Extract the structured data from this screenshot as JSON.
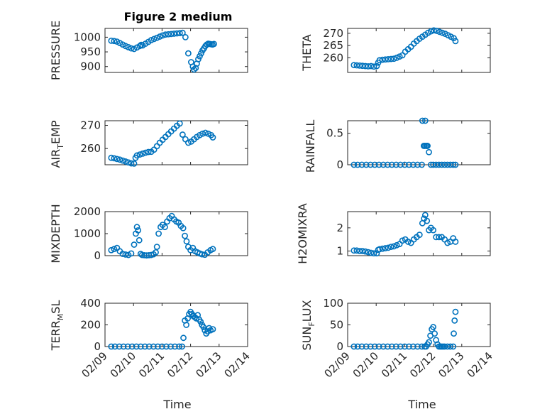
{
  "figure_title": "Figure 2 medium",
  "colors": {
    "marker": "#0072BD",
    "axis": "#262626",
    "grid": "#b0b0b0"
  },
  "chart_data": [
    {
      "type": "scatter",
      "ylabel": "PRESSURE",
      "ylim": [
        880,
        1030
      ],
      "yticks": [
        900,
        950,
        1000
      ],
      "xlim": [
        0,
        5
      ],
      "xtick_labels": [],
      "grid": true,
      "title": "Figure 2 medium",
      "x": [
        0.22,
        0.32,
        0.42,
        0.52,
        0.62,
        0.72,
        0.82,
        0.92,
        1.02,
        1.12,
        1.22,
        1.27,
        1.32,
        1.42,
        1.52,
        1.62,
        1.72,
        1.82,
        1.92,
        2.02,
        2.12,
        2.22,
        2.32,
        2.42,
        2.52,
        2.62,
        2.72,
        2.82,
        2.92,
        3.02,
        3.08,
        3.12,
        3.18,
        3.22,
        3.27,
        3.32,
        3.37,
        3.42,
        3.47,
        3.52,
        3.57,
        3.62,
        3.67,
        3.72,
        3.77,
        3.82
      ],
      "y": [
        988,
        987,
        985,
        980,
        975,
        970,
        966,
        962,
        960,
        965,
        970,
        974,
        972,
        978,
        984,
        990,
        994,
        998,
        1002,
        1006,
        1009,
        1010,
        1011,
        1012,
        1013,
        1014,
        1015,
        1000,
        945,
        915,
        900,
        890,
        895,
        910,
        925,
        935,
        945,
        955,
        962,
        970,
        975,
        978,
        977,
        976,
        975,
        977
      ]
    },
    {
      "type": "scatter",
      "ylabel": "THETA",
      "ylim": [
        254,
        272
      ],
      "yticks": [
        260,
        265,
        270
      ],
      "xlim": [
        0,
        5
      ],
      "xtick_labels": [],
      "grid": true,
      "x": [
        0.22,
        0.32,
        0.42,
        0.52,
        0.62,
        0.72,
        0.82,
        0.92,
        1.02,
        1.07,
        1.12,
        1.22,
        1.32,
        1.42,
        1.52,
        1.62,
        1.72,
        1.82,
        1.92,
        2.02,
        2.12,
        2.22,
        2.32,
        2.42,
        2.52,
        2.62,
        2.72,
        2.82,
        2.92,
        3.02,
        3.12,
        3.22,
        3.32,
        3.42,
        3.52,
        3.62,
        3.72,
        3.78
      ],
      "y": [
        257.0,
        256.9,
        256.8,
        256.7,
        256.6,
        256.5,
        256.6,
        256.4,
        256.6,
        258.0,
        259.0,
        259.2,
        259.3,
        259.4,
        259.5,
        259.6,
        260.0,
        260.5,
        261.0,
        262.5,
        263.5,
        264.5,
        265.8,
        266.8,
        267.8,
        268.6,
        269.4,
        270.2,
        270.8,
        271.2,
        271.0,
        270.6,
        270.2,
        269.8,
        269.2,
        268.6,
        268.0,
        266.8
      ]
    },
    {
      "type": "scatter",
      "ylabel": "AIR_TEMP",
      "ylim": [
        253,
        272
      ],
      "yticks": [
        260,
        270
      ],
      "xlim": [
        0,
        5
      ],
      "xtick_labels": [],
      "grid": true,
      "x": [
        0.22,
        0.32,
        0.42,
        0.52,
        0.62,
        0.72,
        0.82,
        0.92,
        1.02,
        1.07,
        1.12,
        1.22,
        1.32,
        1.42,
        1.52,
        1.62,
        1.72,
        1.82,
        1.92,
        2.02,
        2.12,
        2.22,
        2.32,
        2.42,
        2.52,
        2.62,
        2.72,
        2.82,
        2.92,
        3.02,
        3.12,
        3.22,
        3.32,
        3.42,
        3.52,
        3.62,
        3.72,
        3.78
      ],
      "y": [
        256.0,
        255.8,
        255.5,
        255.2,
        254.8,
        254.4,
        254.0,
        253.6,
        253.5,
        256.0,
        257.0,
        257.4,
        257.8,
        258.2,
        258.5,
        258.6,
        259.5,
        261.0,
        262.5,
        263.8,
        265.0,
        266.2,
        267.4,
        268.6,
        269.8,
        270.8,
        266.0,
        264.0,
        262.5,
        263.0,
        264.0,
        265.0,
        265.8,
        266.4,
        266.8,
        266.4,
        265.8,
        264.8
      ]
    },
    {
      "type": "scatter",
      "ylabel": "RAINFALL",
      "ylim": [
        0,
        0.7
      ],
      "yticks": [
        0,
        0.5
      ],
      "xlim": [
        0,
        5
      ],
      "xtick_labels": [],
      "grid": true,
      "x": [
        0.22,
        0.35,
        0.5,
        0.65,
        0.8,
        0.95,
        1.1,
        1.25,
        1.4,
        1.55,
        1.7,
        1.85,
        2.0,
        2.15,
        2.3,
        2.45,
        2.6,
        2.62,
        2.67,
        2.7,
        2.72,
        2.75,
        2.78,
        2.8,
        2.85,
        2.92,
        3.0,
        3.1,
        3.2,
        3.3,
        3.4,
        3.5,
        3.6,
        3.7,
        3.78
      ],
      "y": [
        0,
        0,
        0,
        0,
        0,
        0,
        0,
        0,
        0,
        0,
        0,
        0,
        0,
        0,
        0,
        0,
        0,
        0.7,
        0.3,
        0.3,
        0.7,
        0.3,
        0.3,
        0.3,
        0.2,
        0,
        0,
        0,
        0,
        0,
        0,
        0,
        0,
        0,
        0
      ]
    },
    {
      "type": "scatter",
      "ylabel": "MIXDEPTH",
      "ylim": [
        0,
        2000
      ],
      "yticks": [
        0,
        1000,
        2000
      ],
      "xlim": [
        0,
        5
      ],
      "xtick_labels": [],
      "grid": true,
      "x": [
        0.22,
        0.32,
        0.42,
        0.52,
        0.62,
        0.72,
        0.82,
        0.92,
        1.02,
        1.08,
        1.12,
        1.16,
        1.2,
        1.25,
        1.3,
        1.38,
        1.46,
        1.54,
        1.62,
        1.7,
        1.78,
        1.82,
        1.88,
        1.95,
        2.02,
        2.1,
        2.18,
        2.26,
        2.34,
        2.42,
        2.5,
        2.58,
        2.66,
        2.74,
        2.8,
        2.86,
        2.92,
        3.0,
        3.08,
        3.16,
        3.24,
        3.32,
        3.4,
        3.5,
        3.6,
        3.7,
        3.78
      ],
      "y": [
        250,
        300,
        350,
        200,
        80,
        50,
        30,
        100,
        500,
        1000,
        1300,
        1150,
        700,
        80,
        30,
        20,
        10,
        20,
        30,
        60,
        150,
        400,
        1000,
        1300,
        1400,
        1300,
        1550,
        1700,
        1800,
        1650,
        1550,
        1500,
        1350,
        1250,
        900,
        650,
        400,
        250,
        350,
        200,
        150,
        100,
        60,
        40,
        150,
        250,
        300
      ]
    },
    {
      "type": "scatter",
      "ylabel": "H2OMIXRA",
      "ylim": [
        0.8,
        2.7
      ],
      "yticks": [
        1,
        2
      ],
      "xlim": [
        0,
        5
      ],
      "xtick_labels": [],
      "grid": true,
      "x": [
        0.22,
        0.32,
        0.42,
        0.52,
        0.62,
        0.72,
        0.82,
        0.92,
        1.02,
        1.07,
        1.12,
        1.22,
        1.32,
        1.42,
        1.52,
        1.62,
        1.72,
        1.82,
        1.92,
        2.02,
        2.12,
        2.22,
        2.32,
        2.42,
        2.52,
        2.62,
        2.68,
        2.72,
        2.78,
        2.85,
        2.92,
        3.0,
        3.1,
        3.2,
        3.3,
        3.4,
        3.5,
        3.6,
        3.7,
        3.78
      ],
      "y": [
        1.02,
        1.02,
        1.0,
        1.0,
        0.98,
        0.95,
        0.92,
        0.9,
        0.9,
        1.05,
        1.08,
        1.1,
        1.12,
        1.14,
        1.18,
        1.2,
        1.25,
        1.3,
        1.45,
        1.5,
        1.4,
        1.35,
        1.5,
        1.6,
        1.7,
        2.2,
        2.4,
        2.55,
        2.3,
        1.9,
        2.0,
        1.9,
        1.6,
        1.6,
        1.6,
        1.5,
        1.35,
        1.4,
        1.55,
        1.4
      ]
    },
    {
      "type": "scatter",
      "ylabel": "TERR_MSL",
      "ylim": [
        0,
        400
      ],
      "yticks": [
        0,
        200,
        400
      ],
      "xlim": [
        0,
        5
      ],
      "xtick_labels": [
        "02/09",
        "02/10",
        "02/11",
        "02/12",
        "02/13",
        "02/14"
      ],
      "xlabel": "Time",
      "grid": true,
      "x": [
        0.22,
        0.35,
        0.5,
        0.65,
        0.8,
        0.95,
        1.1,
        1.25,
        1.4,
        1.55,
        1.7,
        1.85,
        2.0,
        2.15,
        2.3,
        2.45,
        2.6,
        2.7,
        2.75,
        2.8,
        2.85,
        2.9,
        2.95,
        3.0,
        3.05,
        3.1,
        3.15,
        3.2,
        3.25,
        3.3,
        3.35,
        3.4,
        3.45,
        3.5,
        3.55,
        3.6,
        3.65,
        3.7,
        3.78
      ],
      "y": [
        0,
        0,
        0,
        0,
        0,
        0,
        0,
        0,
        0,
        0,
        0,
        0,
        0,
        0,
        0,
        0,
        0,
        0,
        80,
        240,
        200,
        260,
        300,
        320,
        300,
        280,
        270,
        260,
        290,
        250,
        230,
        200,
        180,
        150,
        120,
        140,
        170,
        150,
        160
      ]
    },
    {
      "type": "scatter",
      "ylabel": "SUN_FLUX",
      "ylim": [
        0,
        100
      ],
      "yticks": [
        0,
        50,
        100
      ],
      "xlim": [
        0,
        5
      ],
      "xtick_labels": [
        "02/09",
        "02/10",
        "02/11",
        "02/12",
        "02/13",
        "02/14"
      ],
      "xlabel": "Time",
      "grid": true,
      "x": [
        0.22,
        0.35,
        0.5,
        0.65,
        0.8,
        0.95,
        1.1,
        1.25,
        1.4,
        1.55,
        1.7,
        1.85,
        2.0,
        2.15,
        2.3,
        2.45,
        2.6,
        2.7,
        2.75,
        2.8,
        2.85,
        2.9,
        2.95,
        3.0,
        3.05,
        3.1,
        3.15,
        3.2,
        3.25,
        3.3,
        3.35,
        3.4,
        3.5,
        3.6,
        3.7,
        3.72,
        3.75,
        3.78
      ],
      "y": [
        0,
        0,
        0,
        0,
        0,
        0,
        0,
        0,
        0,
        0,
        0,
        0,
        0,
        0,
        0,
        0,
        0,
        0,
        0,
        5,
        10,
        25,
        40,
        45,
        30,
        15,
        5,
        0,
        0,
        0,
        0,
        0,
        0,
        0,
        0,
        30,
        60,
        80
      ]
    }
  ]
}
